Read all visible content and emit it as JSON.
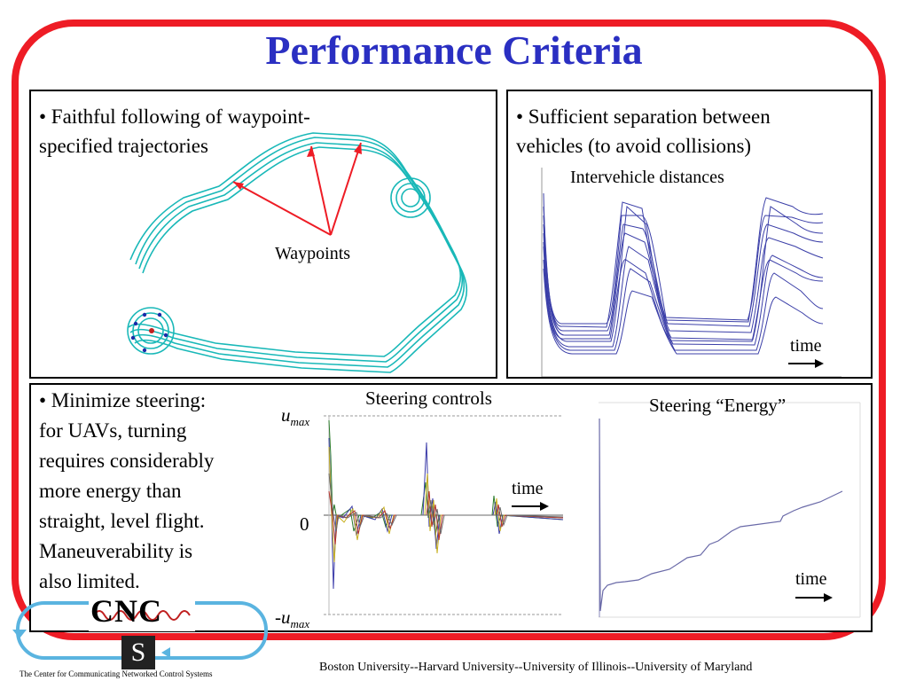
{
  "title": "Performance Criteria",
  "panel_a": {
    "bullet_line1": "• Faithful following of waypoint-",
    "bullet_line2": "specified trajectories",
    "waypoints_label": "Waypoints"
  },
  "panel_b": {
    "bullet_line1": "• Sufficient separation between",
    "bullet_line2": "vehicles (to avoid collisions)",
    "plot_title": "Intervehicle distances",
    "time_label": "time"
  },
  "panel_c": {
    "bullet_lines": [
      "• Minimize steering:",
      "for UAVs, turning",
      "requires considerably",
      "more energy than",
      "straight, level flight.",
      "Maneuverability is",
      "also limited."
    ],
    "steering_title": "Steering controls",
    "umax_label": "u",
    "umax_sub": "max",
    "neg_umax_label": "-u",
    "zero_label": "0",
    "time_label_controls": "time",
    "energy_title": "Steering “Energy”",
    "time_label_energy": "time"
  },
  "logo": {
    "cnc_text": "CNC",
    "s_text": "S",
    "caption": "The Center for Communicating Networked Control Systems"
  },
  "footer": "Boston University--Harvard University--University of Illinois--University of Maryland",
  "colors": {
    "title": "#2a2fc2",
    "frame": "#ee1c25",
    "trajectory": "#19b8b8",
    "distance_lines": "#3b3fa8",
    "arrows": "#ee1c25"
  }
}
